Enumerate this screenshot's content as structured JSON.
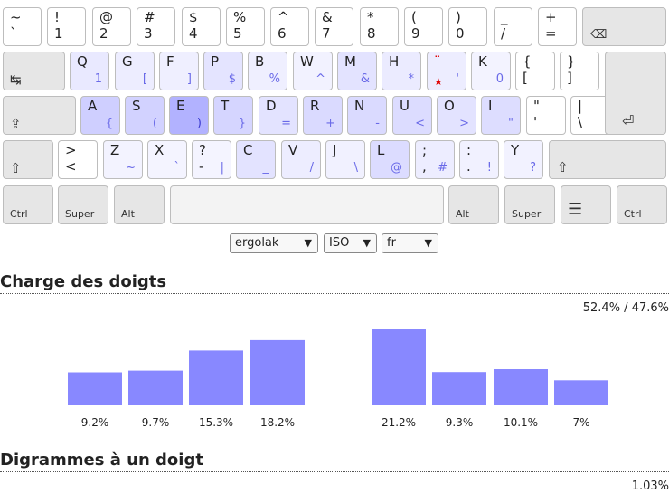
{
  "keyboard": {
    "rows": [
      [
        {
          "sh": "~",
          "bs": "`"
        },
        {
          "sh": "!",
          "bs": "1"
        },
        {
          "sh": "@",
          "bs": "2"
        },
        {
          "sh": "#",
          "bs": "3"
        },
        {
          "sh": "$",
          "bs": "4"
        },
        {
          "sh": "%",
          "bs": "5"
        },
        {
          "sh": "^",
          "bs": "6"
        },
        {
          "sh": "&",
          "bs": "7"
        },
        {
          "sh": "*",
          "bs": "8"
        },
        {
          "sh": "(",
          "bs": "9"
        },
        {
          "sh": ")",
          "bs": "0"
        },
        {
          "sh": "_",
          "bs": "/"
        },
        {
          "sh": "+",
          "bs": "="
        },
        {
          "icon": "⌫",
          "kind": "backspace"
        }
      ],
      [
        {
          "icon": "↹",
          "kind": "tab"
        },
        {
          "sh": "Q",
          "alt": "1",
          "heat": 0.15
        },
        {
          "sh": "G",
          "alt": "[",
          "heat": 0.1
        },
        {
          "sh": "F",
          "alt": "]",
          "heat": 0.08
        },
        {
          "sh": "P",
          "alt": "$",
          "heat": 0.2
        },
        {
          "sh": "B",
          "alt": "%",
          "heat": 0.08
        },
        {
          "sh": "W",
          "alt": "^",
          "heat": 0.04
        },
        {
          "sh": "M",
          "alt": "&",
          "heat": 0.22
        },
        {
          "sh": "H",
          "alt": "*",
          "heat": 0.12
        },
        {
          "sh": "¨",
          "bs": "★",
          "alt": "'",
          "heat": 0.1,
          "dead": true
        },
        {
          "sh": "K",
          "alt": "0",
          "heat": 0.03
        },
        {
          "sh": "{",
          "bs": "["
        },
        {
          "sh": "}",
          "bs": "]"
        }
      ],
      [
        {
          "icon": "⇪",
          "kind": "caps"
        },
        {
          "sh": "A",
          "alt": "{",
          "heat": 0.45
        },
        {
          "sh": "S",
          "alt": "(",
          "heat": 0.42
        },
        {
          "sh": "E",
          "alt": ")",
          "heat": 0.78
        },
        {
          "sh": "T",
          "alt": "}",
          "heat": 0.38
        },
        {
          "sh": "D",
          "alt": "=",
          "heat": 0.22
        },
        {
          "sh": "R",
          "alt": "+",
          "heat": 0.32
        },
        {
          "sh": "N",
          "alt": "-",
          "heat": 0.32
        },
        {
          "sh": "U",
          "alt": "<",
          "heat": 0.3
        },
        {
          "sh": "O",
          "alt": ">",
          "heat": 0.22
        },
        {
          "sh": "I",
          "alt": "\"",
          "heat": 0.28
        },
        {
          "sh": "\"",
          "bs": "'"
        },
        {
          "sh": "|",
          "bs": "\\"
        },
        {
          "icon": "⏎",
          "kind": "enter"
        }
      ],
      [
        {
          "icon": "⇧",
          "kind": "lshift"
        },
        {
          "sh": ">",
          "bs": "<"
        },
        {
          "sh": "Z",
          "alt": "~",
          "heat": 0.03
        },
        {
          "sh": "X",
          "alt": "`",
          "heat": 0.02
        },
        {
          "sh": "?",
          "bs": "-",
          "alt": "|",
          "heat": 0.02
        },
        {
          "sh": "C",
          "alt": "_",
          "heat": 0.22
        },
        {
          "sh": "V",
          "alt": "/",
          "heat": 0.1
        },
        {
          "sh": "J",
          "alt": "\\",
          "heat": 0.05
        },
        {
          "sh": "L",
          "alt": "@",
          "heat": 0.3
        },
        {
          "sh": ";",
          "bs": ",",
          "alt": "#",
          "heat": 0.1
        },
        {
          "sh": ":",
          "bs": ".",
          "alt": "!",
          "heat": 0.06
        },
        {
          "sh": "Y",
          "alt": "?",
          "heat": 0.04
        },
        {
          "icon": "⇧",
          "kind": "rshift"
        }
      ],
      [
        {
          "label": "Ctrl",
          "kind": "ctrl"
        },
        {
          "label": "Super",
          "kind": "super"
        },
        {
          "label": "Alt",
          "kind": "alt"
        },
        {
          "kind": "space"
        },
        {
          "label": "Alt",
          "kind": "altgr"
        },
        {
          "label": "Super",
          "kind": "super"
        },
        {
          "icon": "☰",
          "kind": "menu"
        },
        {
          "label": "Ctrl",
          "kind": "ctrl"
        }
      ]
    ]
  },
  "controls": {
    "layout": "ergolak",
    "geometry": "ISO",
    "language": "fr"
  },
  "finger_load": {
    "title": "Charge des doigts",
    "hand_ratio": "52.4% / 47.6%"
  },
  "sfb": {
    "title": "Digrammes à un doigt",
    "value": "1.03%"
  },
  "chart_data": {
    "type": "bar",
    "title": "Charge des doigts",
    "categories": [
      "",
      "",
      "",
      "",
      "",
      "",
      "",
      ""
    ],
    "values": [
      9.2,
      9.7,
      15.3,
      18.2,
      21.2,
      9.3,
      10.1,
      7
    ],
    "value_labels": [
      "9.2%",
      "9.7%",
      "15.3%",
      "18.2%",
      "21.2%",
      "9.3%",
      "10.1%",
      "7%"
    ],
    "color": "#8888ff",
    "xlabel": "",
    "ylabel": "",
    "grid": false
  }
}
